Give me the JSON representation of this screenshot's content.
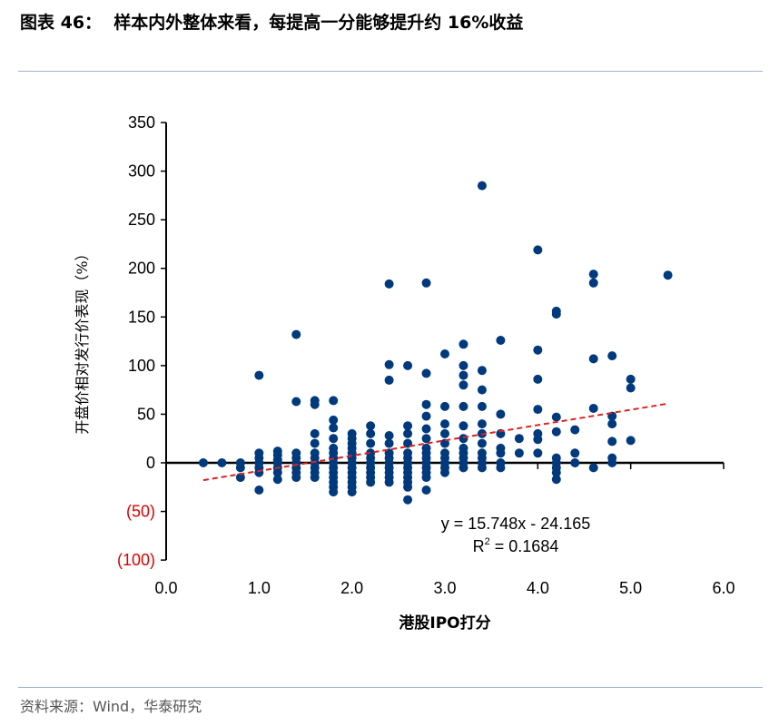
{
  "title": "图表 46：  样本内外整体来看，每提高一分能够提升约 16%收益",
  "source": "资料来源：Wind，华泰研究",
  "chart_data": {
    "type": "scatter",
    "xlabel": "港股IPO打分",
    "ylabel": "开盘价相对发行价表现（%）",
    "xlim": [
      0,
      6
    ],
    "ylim": [
      -100,
      350
    ],
    "xticks": [
      "0.0",
      "1.0",
      "2.0",
      "3.0",
      "4.0",
      "5.0",
      "6.0"
    ],
    "yticks": [
      {
        "value": 350,
        "label": "350"
      },
      {
        "value": 300,
        "label": "300"
      },
      {
        "value": 250,
        "label": "250"
      },
      {
        "value": 200,
        "label": "200"
      },
      {
        "value": 150,
        "label": "150"
      },
      {
        "value": 100,
        "label": "100"
      },
      {
        "value": 50,
        "label": "50"
      },
      {
        "value": 0,
        "label": "0"
      },
      {
        "value": -50,
        "label": "(50)"
      },
      {
        "value": -100,
        "label": "(100)"
      }
    ],
    "grid": false,
    "point_color": "#003a7d",
    "negative_label_color": "#e00000",
    "trendline": {
      "slope": 15.748,
      "intercept": -24.165,
      "x_range": [
        0.4,
        5.4
      ],
      "color": "#e02020",
      "style": "dashed"
    },
    "equation": "y = 15.748x - 24.165",
    "r2_label": "R",
    "r2_sup": "2",
    "r2_value": " = 0.1684",
    "columns": [
      {
        "x": 0.4,
        "y": [
          0
        ]
      },
      {
        "x": 0.6,
        "y": [
          0
        ]
      },
      {
        "x": 0.8,
        "y": [
          0,
          -5,
          -15
        ]
      },
      {
        "x": 1.0,
        "y": [
          90,
          10,
          5,
          0,
          -5,
          -10,
          -28
        ]
      },
      {
        "x": 1.2,
        "y": [
          12,
          8,
          3,
          0,
          -5,
          -10,
          -17
        ]
      },
      {
        "x": 1.4,
        "y": [
          132,
          63,
          10,
          5,
          0,
          -5,
          -10,
          -15
        ]
      },
      {
        "x": 1.6,
        "y": [
          64,
          60,
          30,
          20,
          10,
          5,
          0,
          -5,
          -10,
          -15
        ]
      },
      {
        "x": 1.8,
        "y": [
          64,
          44,
          36,
          25,
          15,
          10,
          5,
          0,
          -5,
          -10,
          -15,
          -20,
          -25,
          -30
        ]
      },
      {
        "x": 2.0,
        "y": [
          30,
          25,
          20,
          15,
          10,
          5,
          0,
          -5,
          -10,
          -15,
          -20,
          -25,
          -30
        ]
      },
      {
        "x": 2.2,
        "y": [
          38,
          30,
          20,
          10,
          5,
          0,
          -5,
          -10,
          -15,
          -20
        ]
      },
      {
        "x": 2.4,
        "y": [
          184,
          101,
          85,
          28,
          20,
          10,
          5,
          0,
          -5,
          -10,
          -15,
          -20
        ]
      },
      {
        "x": 2.6,
        "y": [
          100,
          38,
          30,
          20,
          10,
          5,
          0,
          -5,
          -10,
          -15,
          -20,
          -25,
          -38
        ]
      },
      {
        "x": 2.8,
        "y": [
          185,
          92,
          60,
          48,
          35,
          25,
          15,
          10,
          5,
          0,
          -5,
          -10,
          -15,
          -28
        ]
      },
      {
        "x": 3.0,
        "y": [
          112,
          58,
          40,
          30,
          20,
          10,
          5,
          0,
          -5,
          -10
        ]
      },
      {
        "x": 3.2,
        "y": [
          122,
          100,
          90,
          80,
          58,
          38,
          25,
          15,
          10,
          5,
          0,
          -5
        ]
      },
      {
        "x": 3.4,
        "y": [
          285,
          95,
          75,
          58,
          40,
          30,
          20,
          10,
          5,
          0,
          -5
        ]
      },
      {
        "x": 3.6,
        "y": [
          126,
          50,
          30,
          15,
          10,
          0,
          -5
        ]
      },
      {
        "x": 3.8,
        "y": [
          25,
          10
        ]
      },
      {
        "x": 4.0,
        "y": [
          219,
          116,
          86,
          55,
          30,
          24,
          10
        ]
      },
      {
        "x": 4.2,
        "y": [
          156,
          153,
          47,
          32,
          5,
          0,
          -5,
          -10,
          -17
        ]
      },
      {
        "x": 4.4,
        "y": [
          34,
          10,
          0
        ]
      },
      {
        "x": 4.6,
        "y": [
          194,
          185,
          107,
          56,
          -5
        ]
      },
      {
        "x": 4.8,
        "y": [
          110,
          48,
          40,
          22,
          5,
          0
        ]
      },
      {
        "x": 5.0,
        "y": [
          86,
          77,
          23
        ]
      },
      {
        "x": 5.4,
        "y": [
          193
        ]
      }
    ]
  }
}
